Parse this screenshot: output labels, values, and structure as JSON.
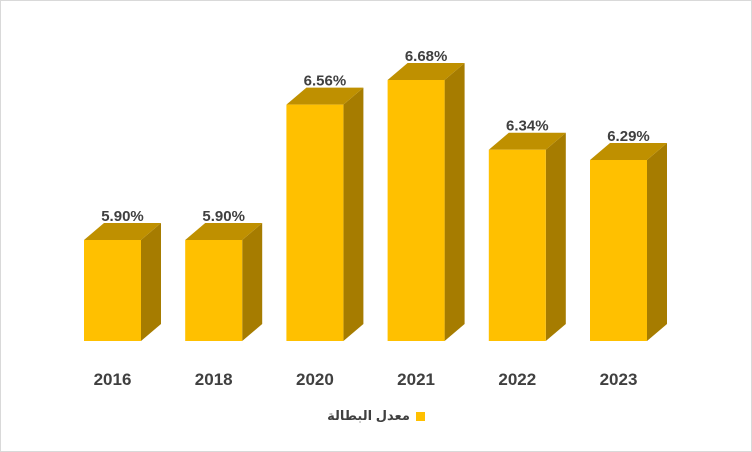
{
  "chart_data": {
    "type": "bar",
    "style": "3d-column",
    "categories": [
      "2016",
      "2018",
      "2020",
      "2021",
      "2022",
      "2023"
    ],
    "values": [
      5.9,
      5.9,
      6.56,
      6.68,
      6.34,
      6.29
    ],
    "value_labels": [
      "5.90%",
      "5.90%",
      "6.56%",
      "6.68%",
      "6.34%",
      "6.29%"
    ],
    "series": [
      {
        "name": "معدل البطالة",
        "values": [
          5.9,
          5.9,
          6.56,
          6.68,
          6.34,
          6.29
        ]
      }
    ],
    "title": "",
    "xlabel": "",
    "ylabel": "",
    "grid": false,
    "legend_position": "bottom",
    "colors": {
      "front": "#FFC000",
      "top": "#BF9000",
      "side": "#A67C00",
      "label": "#404040"
    }
  },
  "legend": {
    "label": "معدل البطالة"
  }
}
